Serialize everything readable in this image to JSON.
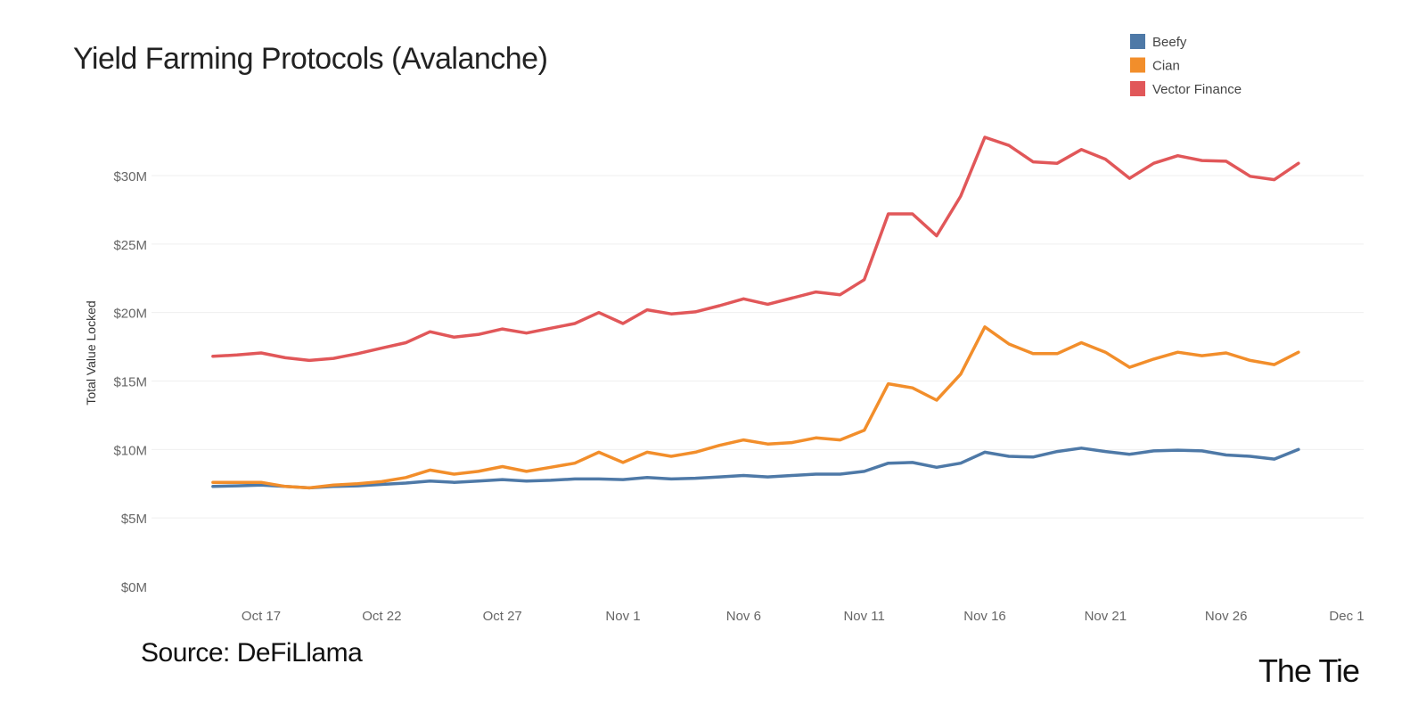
{
  "chart_data": {
    "type": "line",
    "title": "Yield Farming Protocols (Avalanche)",
    "xlabel": "",
    "ylabel": "Total Value Locked",
    "ylim": [
      0,
      33
    ],
    "grid": true,
    "legend_placement": "top-right",
    "x_ticks": [
      {
        "value": 3,
        "label": "Oct 17"
      },
      {
        "value": 8,
        "label": "Oct 22"
      },
      {
        "value": 13,
        "label": "Oct 27"
      },
      {
        "value": 18,
        "label": "Nov 1"
      },
      {
        "value": 23,
        "label": "Nov 6"
      },
      {
        "value": 28,
        "label": "Nov 11"
      },
      {
        "value": 33,
        "label": "Nov 16"
      },
      {
        "value": 38,
        "label": "Nov 21"
      },
      {
        "value": 43,
        "label": "Nov 26"
      },
      {
        "value": 48,
        "label": "Dec 1"
      }
    ],
    "y_ticks": [
      {
        "value": 0,
        "label": "$0M"
      },
      {
        "value": 5,
        "label": "$5M"
      },
      {
        "value": 10,
        "label": "$10M"
      },
      {
        "value": 15,
        "label": "$15M"
      },
      {
        "value": 20,
        "label": "$20M"
      },
      {
        "value": 25,
        "label": "$25M"
      },
      {
        "value": 30,
        "label": "$30M"
      }
    ],
    "x_range": [
      0,
      50
    ],
    "x_start": 1,
    "series": [
      {
        "name": "Beefy",
        "color": "#4e79a7",
        "values": [
          7.3,
          7.35,
          7.4,
          7.3,
          7.2,
          7.3,
          7.35,
          7.45,
          7.55,
          7.7,
          7.6,
          7.7,
          7.8,
          7.7,
          7.75,
          7.85,
          7.85,
          7.8,
          7.95,
          7.85,
          7.9,
          8.0,
          8.1,
          8.0,
          8.1,
          8.2,
          8.2,
          8.4,
          9.0,
          9.05,
          8.7,
          9.0,
          9.8,
          9.5,
          9.45,
          9.85,
          10.1,
          9.85,
          9.65,
          9.9,
          9.95,
          9.9,
          9.6,
          9.5,
          9.3,
          10.0
        ]
      },
      {
        "name": "Cian",
        "color": "#f28e2b",
        "values": [
          7.6,
          7.6,
          7.6,
          7.3,
          7.2,
          7.4,
          7.5,
          7.65,
          7.95,
          8.5,
          8.2,
          8.4,
          8.75,
          8.4,
          8.7,
          9.0,
          9.8,
          9.05,
          9.8,
          9.5,
          9.8,
          10.3,
          10.7,
          10.4,
          10.5,
          10.85,
          10.7,
          11.4,
          14.8,
          14.5,
          13.6,
          15.5,
          18.95,
          17.7,
          17.0,
          17.0,
          17.8,
          17.1,
          16.0,
          16.6,
          17.1,
          16.85,
          17.05,
          16.5,
          16.2,
          17.1
        ]
      },
      {
        "name": "Vector Finance",
        "color": "#e15759",
        "values": [
          16.8,
          16.9,
          17.05,
          16.7,
          16.5,
          16.65,
          17.0,
          17.4,
          17.8,
          18.6,
          18.2,
          18.4,
          18.8,
          18.5,
          18.85,
          19.2,
          20.0,
          19.2,
          20.2,
          19.9,
          20.05,
          20.5,
          21.0,
          20.6,
          21.05,
          21.5,
          21.3,
          22.4,
          27.2,
          27.2,
          25.6,
          28.5,
          32.8,
          32.2,
          31.0,
          30.9,
          31.9,
          31.2,
          29.8,
          30.9,
          31.45,
          31.1,
          31.05,
          29.95,
          29.7,
          30.9
        ]
      }
    ]
  },
  "footer": {
    "source": "Source: DeFiLlama",
    "brand": "The Tie"
  }
}
